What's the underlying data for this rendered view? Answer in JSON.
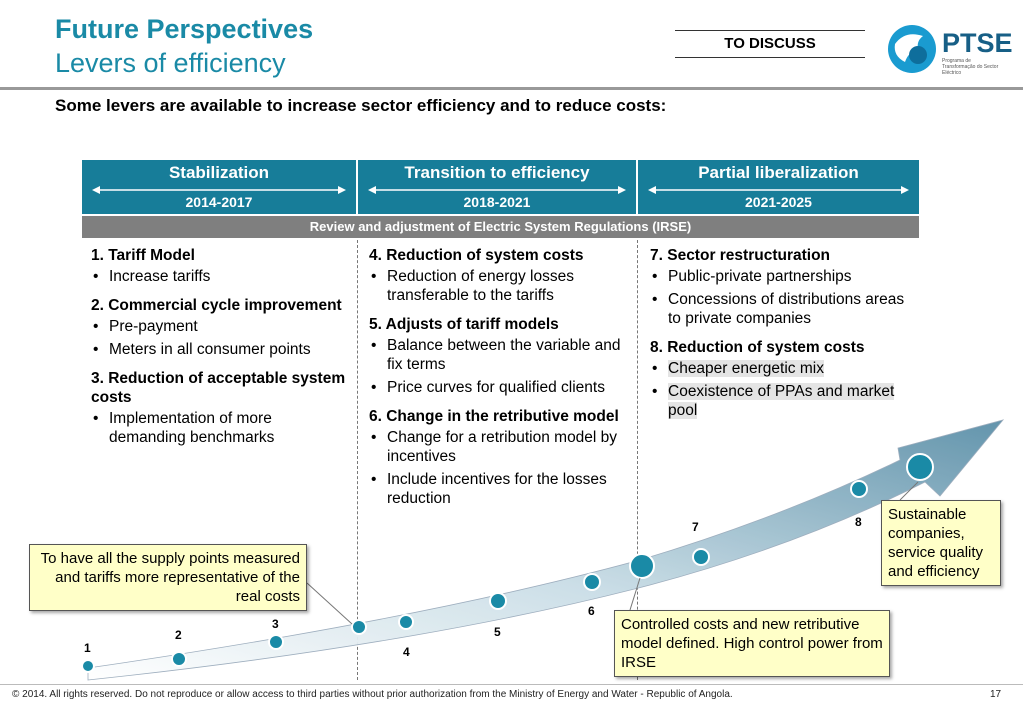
{
  "header": {
    "title": "Future Perspectives",
    "subtitle": "Levers of efficiency",
    "tag": "TO DISCUSS",
    "logo_text": "PTSE",
    "logo_sub": "Programa de Transformação do Sector Eléctrico"
  },
  "intro": "Some levers are available to increase sector efficiency and to reduce costs:",
  "phases": [
    {
      "label": "Stabilization",
      "years": "2014-2017"
    },
    {
      "label": "Transition to efficiency",
      "years": "2018-2021"
    },
    {
      "label": "Partial liberalization",
      "years": "2021-2025"
    }
  ],
  "review_bar": "Review and adjustment of Electric System Regulations (IRSE)",
  "columns": [
    {
      "sections": [
        {
          "heading": "1. Tariff Model",
          "bullets": [
            "Increase tariffs"
          ]
        },
        {
          "heading": "2. Commercial cycle improvement",
          "bullets": [
            "Pre-payment",
            "Meters in all consumer points"
          ]
        },
        {
          "heading": "3. Reduction of acceptable system costs",
          "bullets": [
            "Implementation of more demanding benchmarks"
          ]
        }
      ]
    },
    {
      "sections": [
        {
          "heading": "4. Reduction of system costs",
          "bullets": [
            "Reduction of energy losses transferable to the tariffs"
          ]
        },
        {
          "heading": "5. Adjusts of tariff models",
          "bullets": [
            "Balance between the variable and fix terms",
            "Price curves for qualified clients"
          ]
        },
        {
          "heading": "6. Change in the retributive model",
          "bullets": [
            "Change for a retribution model by incentives",
            "Include incentives for the losses reduction"
          ]
        }
      ]
    },
    {
      "sections": [
        {
          "heading": "7. Sector restructuration",
          "bullets": [
            "Public-private partnerships",
            "Concessions of distributions areas to private companies"
          ]
        },
        {
          "heading": "8. Reduction of system costs",
          "bullets": [
            "Cheaper energetic mix",
            "Coexistence of PPAs and market pool"
          ]
        }
      ]
    }
  ],
  "milestones": [
    "1",
    "2",
    "3",
    "4",
    "5",
    "6",
    "7",
    "8"
  ],
  "callouts": {
    "left": "To have all the supply points measured and tariffs more representative of the real costs",
    "middle": "Controlled costs and new retributive model defined. High control power from IRSE",
    "right": "Sustainable companies, service quality and efficiency"
  },
  "footer": "© 2014. All rights reserved. Do not reproduce or allow access to third parties without prior authorization from the Ministry of Energy and Water - Republic of Angola.",
  "page_number": "17",
  "colors": {
    "accent": "#177d99",
    "title": "#1a8aa6",
    "review": "#7f7f7f",
    "callout": "#ffffc8"
  }
}
